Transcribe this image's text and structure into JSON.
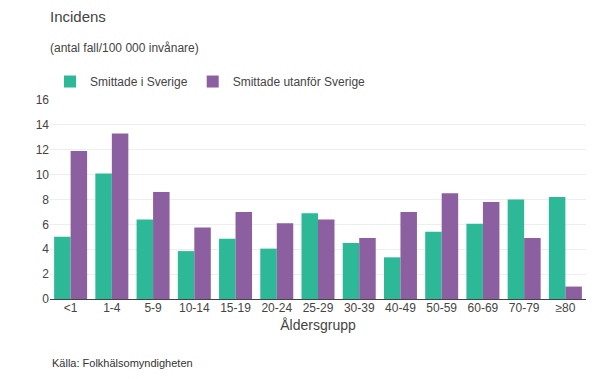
{
  "chart_data": {
    "type": "bar",
    "title": "Incidens",
    "subtitle": "(antal fall/100 000 invånare)",
    "x_label": "Åldersgrupp",
    "annotations": [
      "Källa: Folkhälsomyndigheten"
    ],
    "categories": [
      "<1",
      "1-4",
      "5-9",
      "10-14",
      "15-19",
      "20-24",
      "25-29",
      "30-39",
      "40-49",
      "50-59",
      "60-69",
      "70-79",
      "≥80"
    ],
    "series": [
      {
        "name": "Smittade i Sverige",
        "color": "#2db898",
        "values": [
          5.0,
          10.1,
          6.4,
          3.85,
          4.85,
          4.05,
          6.9,
          4.5,
          3.35,
          5.4,
          6.05,
          8.0,
          8.2
        ]
      },
      {
        "name": "Smittade utanför Sverige",
        "color": "#8b5fa0",
        "values": [
          11.9,
          13.3,
          8.6,
          5.75,
          7.0,
          6.1,
          6.4,
          4.9,
          7.0,
          8.5,
          7.8,
          4.9,
          1.0
        ]
      }
    ],
    "ylim": [
      0,
      16
    ],
    "yticks": [
      0,
      2,
      4,
      6,
      8,
      10,
      12,
      14,
      16
    ],
    "grid": true,
    "legend": "top"
  }
}
